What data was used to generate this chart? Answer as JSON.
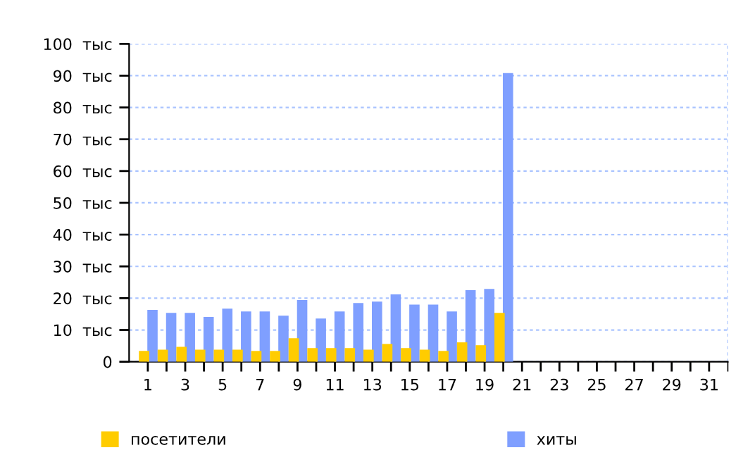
{
  "chart_data": {
    "type": "bar",
    "categories": [
      "1",
      null,
      "3",
      null,
      "5",
      null,
      "7",
      null,
      "9",
      null,
      "11",
      null,
      "13",
      null,
      "15",
      null,
      "17",
      null,
      "19",
      null,
      "21",
      null,
      "23",
      null,
      "25",
      null,
      "27",
      null,
      "29",
      null,
      "31"
    ],
    "series": [
      {
        "name": "посетители",
        "color": "#ffcc00",
        "values": [
          3.4,
          3.8,
          4.7,
          3.8,
          3.8,
          3.8,
          3.4,
          3.4,
          7.4,
          4.3,
          4.3,
          4.3,
          3.8,
          5.6,
          4.3,
          3.8,
          3.4,
          6.1,
          5.2,
          15.4,
          null,
          null,
          null,
          null,
          null,
          null,
          null,
          null,
          null,
          null,
          null
        ]
      },
      {
        "name": "хиты",
        "color": "#7f9fff",
        "values": [
          16.3,
          15.4,
          15.4,
          14.1,
          16.7,
          15.8,
          15.8,
          14.5,
          19.4,
          13.6,
          15.8,
          18.5,
          18.9,
          21.2,
          18.0,
          18.0,
          15.8,
          22.5,
          22.9,
          90.8,
          null,
          null,
          null,
          null,
          null,
          null,
          null,
          null,
          null,
          null,
          null
        ]
      }
    ],
    "ylim": [
      0,
      100
    ],
    "yticks": [
      {
        "value": 0,
        "label": "0"
      },
      {
        "value": 10,
        "label": "10  тыс"
      },
      {
        "value": 20,
        "label": "20  тыс"
      },
      {
        "value": 30,
        "label": "30  тыс"
      },
      {
        "value": 40,
        "label": "40  тыс"
      },
      {
        "value": 50,
        "label": "50  тыс"
      },
      {
        "value": 60,
        "label": "60  тыс"
      },
      {
        "value": 70,
        "label": "70  тыс"
      },
      {
        "value": 80,
        "label": "80  тыс"
      },
      {
        "value": 90,
        "label": "90  тыс"
      },
      {
        "value": 100,
        "label": "100  тыс"
      }
    ],
    "grid": true,
    "legend": "bottom"
  }
}
